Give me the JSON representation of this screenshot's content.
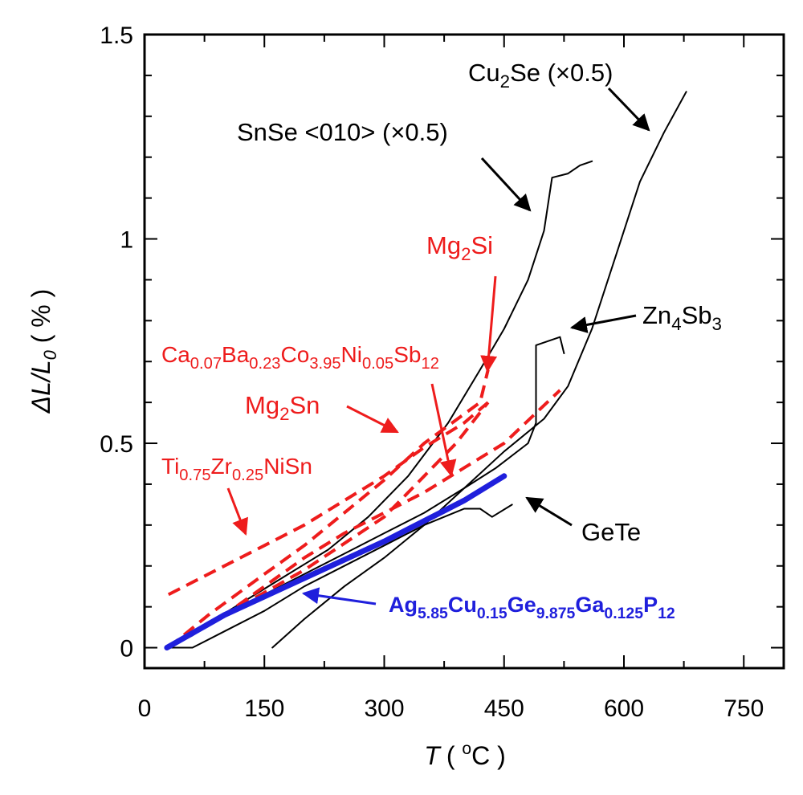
{
  "chart_data": {
    "type": "line",
    "xlabel": {
      "main": "T",
      "open": "( ",
      "sup": "o",
      "unit": "C )"
    },
    "ylabel": {
      "main": "ΔL/L",
      "sub": "0",
      "unit": " ( % )"
    },
    "xlim": [
      0,
      800
    ],
    "ylim": [
      -0.05,
      1.5
    ],
    "xticks": [
      0,
      150,
      300,
      450,
      600,
      750
    ],
    "yticks": [
      {
        "value": 0,
        "label": "0"
      },
      {
        "value": 0.5,
        "label": "0.5"
      },
      {
        "value": 1,
        "label": "1"
      },
      {
        "value": 1.5,
        "label": "1.5"
      }
    ],
    "colors": {
      "black": "#000000",
      "red": "#ee1c1c",
      "blue": "#1f1fdc"
    },
    "series": [
      {
        "name": "Cu2Se (×0.5)",
        "color": "black",
        "style": "solid",
        "width": 2,
        "points": [
          [
            160,
            0
          ],
          [
            200,
            0.07
          ],
          [
            250,
            0.15
          ],
          [
            300,
            0.22
          ],
          [
            350,
            0.3
          ],
          [
            400,
            0.39
          ],
          [
            450,
            0.48
          ],
          [
            500,
            0.56
          ],
          [
            530,
            0.64
          ],
          [
            560,
            0.78
          ],
          [
            590,
            0.96
          ],
          [
            620,
            1.14
          ],
          [
            650,
            1.26
          ],
          [
            678,
            1.36
          ]
        ]
      },
      {
        "name": "SnSe <010> (×0.5)",
        "color": "black",
        "style": "solid",
        "width": 2,
        "points": [
          [
            30,
            0
          ],
          [
            80,
            0.06
          ],
          [
            130,
            0.12
          ],
          [
            180,
            0.18
          ],
          [
            230,
            0.24
          ],
          [
            280,
            0.32
          ],
          [
            330,
            0.42
          ],
          [
            380,
            0.55
          ],
          [
            420,
            0.68
          ],
          [
            450,
            0.78
          ],
          [
            480,
            0.9
          ],
          [
            500,
            1.02
          ],
          [
            510,
            1.15
          ],
          [
            530,
            1.16
          ],
          [
            545,
            1.18
          ],
          [
            560,
            1.19
          ]
        ]
      },
      {
        "name": "Zn4Sb3",
        "color": "black",
        "style": "solid",
        "width": 2,
        "points": [
          [
            30,
            0
          ],
          [
            60,
            0.03
          ],
          [
            100,
            0.08
          ],
          [
            150,
            0.13
          ],
          [
            200,
            0.18
          ],
          [
            250,
            0.23
          ],
          [
            300,
            0.28
          ],
          [
            350,
            0.33
          ],
          [
            400,
            0.39
          ],
          [
            440,
            0.44
          ],
          [
            480,
            0.5
          ],
          [
            490,
            0.55
          ],
          [
            490,
            0.74
          ],
          [
            520,
            0.76
          ],
          [
            525,
            0.72
          ]
        ]
      },
      {
        "name": "GeTe",
        "color": "black",
        "style": "solid",
        "width": 2,
        "points": [
          [
            30,
            0
          ],
          [
            60,
            0
          ],
          [
            100,
            0.04
          ],
          [
            150,
            0.09
          ],
          [
            200,
            0.15
          ],
          [
            250,
            0.2
          ],
          [
            300,
            0.25
          ],
          [
            350,
            0.3
          ],
          [
            400,
            0.34
          ],
          [
            420,
            0.34
          ],
          [
            435,
            0.32
          ],
          [
            460,
            0.35
          ]
        ]
      },
      {
        "name": "Mg2Si",
        "color": "red",
        "style": "dashed",
        "width": 4,
        "points": [
          [
            30,
            0
          ],
          [
            100,
            0.08
          ],
          [
            200,
            0.19
          ],
          [
            300,
            0.32
          ],
          [
            350,
            0.42
          ],
          [
            390,
            0.5
          ],
          [
            430,
            0.6
          ]
        ]
      },
      {
        "name": "Ca0.07Ba0.23Co3.95Ni0.05Sb12",
        "color": "red",
        "style": "dashed",
        "width": 4,
        "points": [
          [
            30,
            0
          ],
          [
            80,
            0.08
          ],
          [
            150,
            0.18
          ],
          [
            200,
            0.25
          ],
          [
            250,
            0.33
          ],
          [
            300,
            0.41
          ],
          [
            350,
            0.5
          ],
          [
            420,
            0.6
          ],
          [
            430,
            0.68
          ]
        ]
      },
      {
        "name": "Mg2Sn",
        "color": "red",
        "style": "dashed",
        "width": 4,
        "points": [
          [
            30,
            0
          ],
          [
            100,
            0.08
          ],
          [
            150,
            0.15
          ],
          [
            200,
            0.22
          ],
          [
            250,
            0.28
          ],
          [
            300,
            0.33
          ],
          [
            350,
            0.38
          ],
          [
            400,
            0.44
          ],
          [
            450,
            0.5
          ],
          [
            520,
            0.63
          ]
        ]
      },
      {
        "name": "Ti0.75Zr0.25NiSn",
        "color": "red",
        "style": "dashed",
        "width": 4,
        "points": [
          [
            30,
            0.13
          ],
          [
            100,
            0.2
          ],
          [
            150,
            0.25
          ],
          [
            200,
            0.3
          ],
          [
            250,
            0.36
          ],
          [
            300,
            0.42
          ],
          [
            350,
            0.49
          ],
          [
            400,
            0.55
          ],
          [
            430,
            0.6
          ]
        ]
      },
      {
        "name": "Ag5.85Cu0.15Ge9.875Ga0.125P12",
        "color": "blue",
        "style": "solid",
        "width": 7,
        "points": [
          [
            28,
            0
          ],
          [
            100,
            0.08
          ],
          [
            200,
            0.17
          ],
          [
            300,
            0.26
          ],
          [
            400,
            0.36
          ],
          [
            450,
            0.42
          ]
        ]
      }
    ],
    "annotations": [
      {
        "id": "cu2se",
        "color": "black",
        "parts": [
          [
            "Cu",
            "n"
          ],
          [
            "2",
            "sub"
          ],
          [
            "Se (×0.5)",
            "n"
          ]
        ]
      },
      {
        "id": "snse",
        "color": "black",
        "parts": [
          [
            "SnSe <010> (×0.5)",
            "n"
          ]
        ]
      },
      {
        "id": "mg2si",
        "color": "red",
        "parts": [
          [
            "Mg",
            "n"
          ],
          [
            "2",
            "sub"
          ],
          [
            "Si",
            "n"
          ]
        ]
      },
      {
        "id": "zn4sb3",
        "color": "black",
        "parts": [
          [
            "Zn",
            "n"
          ],
          [
            "4",
            "sub"
          ],
          [
            "Sb",
            "n"
          ],
          [
            "3",
            "sub"
          ]
        ]
      },
      {
        "id": "skutt",
        "color": "red",
        "parts": [
          [
            "Ca",
            "n"
          ],
          [
            "0.07",
            "sub"
          ],
          [
            "Ba",
            "n"
          ],
          [
            "0.23",
            "sub"
          ],
          [
            "Co",
            "n"
          ],
          [
            "3.95",
            "sub"
          ],
          [
            "Ni",
            "n"
          ],
          [
            "0.05",
            "sub"
          ],
          [
            "Sb",
            "n"
          ],
          [
            "12",
            "sub"
          ]
        ]
      },
      {
        "id": "mg2sn",
        "color": "red",
        "parts": [
          [
            "Mg",
            "n"
          ],
          [
            "2",
            "sub"
          ],
          [
            "Sn",
            "n"
          ]
        ]
      },
      {
        "id": "tizr",
        "color": "red",
        "parts": [
          [
            "Ti",
            "n"
          ],
          [
            "0.75",
            "sub"
          ],
          [
            "Zr",
            "n"
          ],
          [
            "0.25",
            "sub"
          ],
          [
            "NiSn",
            "n"
          ]
        ]
      },
      {
        "id": "gete",
        "color": "black",
        "parts": [
          [
            "GeTe",
            "n"
          ]
        ]
      },
      {
        "id": "agcu",
        "color": "blue",
        "parts": [
          [
            "Ag",
            "n"
          ],
          [
            "5.85",
            "sub"
          ],
          [
            "Cu",
            "n"
          ],
          [
            "0.15",
            "sub"
          ],
          [
            "Ge",
            "n"
          ],
          [
            "9.875",
            "sub"
          ],
          [
            "Ga",
            "n"
          ],
          [
            "0.125",
            "sub"
          ],
          [
            "P",
            "n"
          ],
          [
            "12",
            "sub"
          ]
        ]
      }
    ]
  }
}
